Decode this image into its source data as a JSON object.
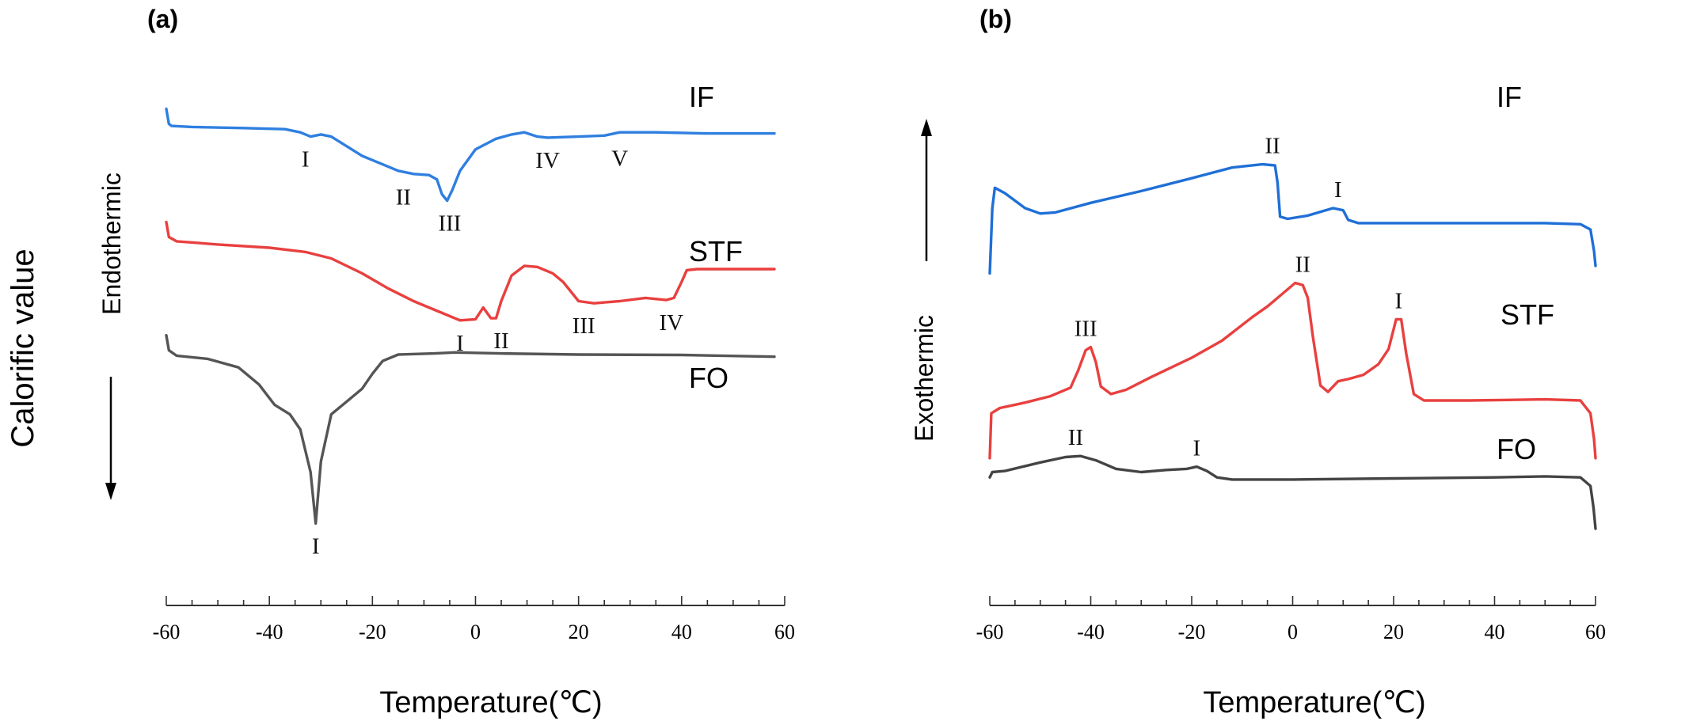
{
  "figure": {
    "y_axis_label": "Calorific value"
  },
  "chart_data": [
    {
      "type": "line",
      "panel_label": "(a)",
      "xlabel": "Temperature(℃)",
      "direction_label": "Endothermic",
      "arrow_direction": "down",
      "xlim": [
        -60,
        60
      ],
      "xticks": [
        -60,
        -40,
        -20,
        0,
        20,
        40,
        60
      ],
      "y_scale": "arbitrary units, larger value = higher on plot",
      "ylim": [
        -10,
        10
      ],
      "grid": false,
      "series": [
        {
          "name": "IF",
          "color": "#2f7fe0",
          "points": [
            [
              -60,
              7.5
            ],
            [
              -59.5,
              6.8
            ],
            [
              -59,
              6.7
            ],
            [
              -55,
              6.65
            ],
            [
              -45,
              6.6
            ],
            [
              -37,
              6.55
            ],
            [
              -34,
              6.4
            ],
            [
              -32,
              6.2
            ],
            [
              -30,
              6.3
            ],
            [
              -28,
              6.2
            ],
            [
              -26,
              5.9
            ],
            [
              -22,
              5.3
            ],
            [
              -18,
              4.9
            ],
            [
              -15,
              4.6
            ],
            [
              -12,
              4.45
            ],
            [
              -9,
              4.4
            ],
            [
              -7.5,
              4.2
            ],
            [
              -6.5,
              3.5
            ],
            [
              -5.5,
              3.2
            ],
            [
              -4.5,
              3.7
            ],
            [
              -3,
              4.6
            ],
            [
              0,
              5.6
            ],
            [
              4,
              6.1
            ],
            [
              7,
              6.3
            ],
            [
              9.5,
              6.4
            ],
            [
              12,
              6.2
            ],
            [
              14,
              6.15
            ],
            [
              20,
              6.2
            ],
            [
              25,
              6.25
            ],
            [
              28,
              6.4
            ],
            [
              35,
              6.4
            ],
            [
              45,
              6.35
            ],
            [
              58,
              6.35
            ]
          ],
          "peak_labels": [
            {
              "label": "I",
              "x": -33
            },
            {
              "label": "II",
              "x": -14
            },
            {
              "label": "III",
              "x": -5
            },
            {
              "label": "IV",
              "x": 14
            },
            {
              "label": "V",
              "x": 28
            }
          ]
        },
        {
          "name": "STF",
          "color": "#e8403f",
          "points": [
            [
              -60,
              2.2
            ],
            [
              -59.5,
              1.5
            ],
            [
              -58,
              1.3
            ],
            [
              -50,
              1.15
            ],
            [
              -40,
              1.0
            ],
            [
              -33,
              0.8
            ],
            [
              -28,
              0.5
            ],
            [
              -22,
              -0.2
            ],
            [
              -17,
              -0.9
            ],
            [
              -12,
              -1.5
            ],
            [
              -7,
              -2.0
            ],
            [
              -3,
              -2.4
            ],
            [
              0,
              -2.35
            ],
            [
              1.5,
              -1.8
            ],
            [
              3,
              -2.3
            ],
            [
              4,
              -2.3
            ],
            [
              5,
              -1.5
            ],
            [
              7,
              -0.3
            ],
            [
              9.5,
              0.15
            ],
            [
              12,
              0.1
            ],
            [
              15,
              -0.2
            ],
            [
              17,
              -0.6
            ],
            [
              20,
              -1.5
            ],
            [
              23,
              -1.6
            ],
            [
              28,
              -1.5
            ],
            [
              33,
              -1.35
            ],
            [
              37,
              -1.45
            ],
            [
              38.5,
              -1.35
            ],
            [
              40,
              -0.6
            ],
            [
              41,
              -0.05
            ],
            [
              43,
              0.0
            ],
            [
              50,
              0.0
            ],
            [
              58,
              0.0
            ]
          ],
          "peak_labels": [
            {
              "label": "I",
              "x": -3
            },
            {
              "label": "II",
              "x": 5
            },
            {
              "label": "III",
              "x": 21
            },
            {
              "label": "IV",
              "x": 38
            }
          ]
        },
        {
          "name": "FO",
          "color": "#555555",
          "points": [
            [
              -60,
              -3.1
            ],
            [
              -59.5,
              -3.8
            ],
            [
              -58,
              -4.05
            ],
            [
              -52,
              -4.2
            ],
            [
              -46,
              -4.6
            ],
            [
              -42,
              -5.4
            ],
            [
              -39,
              -6.35
            ],
            [
              -36,
              -6.8
            ],
            [
              -34,
              -7.5
            ],
            [
              -32,
              -9.5
            ],
            [
              -31,
              -11.9
            ],
            [
              -30,
              -9.0
            ],
            [
              -28,
              -6.8
            ],
            [
              -25,
              -6.2
            ],
            [
              -22,
              -5.6
            ],
            [
              -20,
              -4.9
            ],
            [
              -18,
              -4.3
            ],
            [
              -15,
              -4.0
            ],
            [
              -8,
              -3.95
            ],
            [
              -4,
              -3.9
            ],
            [
              5,
              -3.95
            ],
            [
              20,
              -4.0
            ],
            [
              40,
              -4.02
            ],
            [
              58,
              -4.1
            ]
          ],
          "peak_labels": [
            {
              "label": "I",
              "x": -31
            }
          ]
        }
      ]
    },
    {
      "type": "line",
      "panel_label": "(b)",
      "xlabel": "Temperature(℃)",
      "direction_label": "Exothermic",
      "arrow_direction": "up",
      "xlim": [
        -60,
        60
      ],
      "xticks": [
        -60,
        -40,
        -20,
        0,
        20,
        40,
        60
      ],
      "y_scale": "arbitrary units, larger value = higher on plot",
      "ylim": [
        -10,
        10
      ],
      "grid": false,
      "series": [
        {
          "name": "IF",
          "color": "#1f6fd6",
          "points": [
            [
              -60,
              2.95
            ],
            [
              -59.5,
              6.0
            ],
            [
              -59,
              6.95
            ],
            [
              -57,
              6.7
            ],
            [
              -53,
              6.0
            ],
            [
              -50,
              5.75
            ],
            [
              -47,
              5.8
            ],
            [
              -40,
              6.25
            ],
            [
              -30,
              6.8
            ],
            [
              -20,
              7.4
            ],
            [
              -12,
              7.9
            ],
            [
              -6,
              8.05
            ],
            [
              -3.5,
              8.0
            ],
            [
              -3,
              7.2
            ],
            [
              -2.5,
              5.6
            ],
            [
              -1,
              5.5
            ],
            [
              3,
              5.65
            ],
            [
              8,
              6.0
            ],
            [
              10,
              5.9
            ],
            [
              11,
              5.45
            ],
            [
              13,
              5.3
            ],
            [
              30,
              5.3
            ],
            [
              50,
              5.3
            ],
            [
              57,
              5.25
            ],
            [
              59,
              5.0
            ],
            [
              59.7,
              4.0
            ],
            [
              60,
              3.3
            ]
          ],
          "peak_labels": [
            {
              "label": "II",
              "x": -4
            },
            {
              "label": "I",
              "x": 9
            }
          ]
        },
        {
          "name": "STF",
          "color": "#e8403f",
          "points": [
            [
              -60,
              -5.7
            ],
            [
              -59.7,
              -3.6
            ],
            [
              -58,
              -3.35
            ],
            [
              -53,
              -3.1
            ],
            [
              -48,
              -2.8
            ],
            [
              -44,
              -2.4
            ],
            [
              -42.5,
              -1.6
            ],
            [
              -41,
              -0.65
            ],
            [
              -40,
              -0.5
            ],
            [
              -39,
              -1.2
            ],
            [
              -38,
              -2.35
            ],
            [
              -36,
              -2.7
            ],
            [
              -33,
              -2.5
            ],
            [
              -28,
              -1.9
            ],
            [
              -20,
              -1.0
            ],
            [
              -14,
              -0.2
            ],
            [
              -8,
              0.9
            ],
            [
              -5,
              1.4
            ],
            [
              -2,
              2.0
            ],
            [
              0.5,
              2.5
            ],
            [
              2,
              2.4
            ],
            [
              3,
              1.8
            ],
            [
              4,
              0.0
            ],
            [
              5.5,
              -2.3
            ],
            [
              7,
              -2.6
            ],
            [
              9,
              -2.1
            ],
            [
              11,
              -2.0
            ],
            [
              14,
              -1.8
            ],
            [
              17,
              -1.3
            ],
            [
              19,
              -0.6
            ],
            [
              20.5,
              0.8
            ],
            [
              21.5,
              0.8
            ],
            [
              22.5,
              -0.8
            ],
            [
              24,
              -2.7
            ],
            [
              26,
              -3.0
            ],
            [
              35,
              -3.0
            ],
            [
              50,
              -2.95
            ],
            [
              57,
              -3.0
            ],
            [
              59,
              -3.6
            ],
            [
              59.7,
              -4.8
            ],
            [
              60,
              -5.7
            ]
          ],
          "peak_labels": [
            {
              "label": "III",
              "x": -41
            },
            {
              "label": "II",
              "x": 2
            },
            {
              "label": "I",
              "x": 21
            }
          ]
        },
        {
          "name": "FO",
          "color": "#444444",
          "points": [
            [
              -60,
              -6.6
            ],
            [
              -59.5,
              -6.35
            ],
            [
              -57,
              -6.3
            ],
            [
              -50,
              -5.9
            ],
            [
              -45,
              -5.65
            ],
            [
              -42,
              -5.6
            ],
            [
              -39,
              -5.8
            ],
            [
              -35,
              -6.2
            ],
            [
              -30,
              -6.35
            ],
            [
              -25,
              -6.25
            ],
            [
              -21,
              -6.2
            ],
            [
              -19,
              -6.1
            ],
            [
              -17,
              -6.3
            ],
            [
              -15,
              -6.6
            ],
            [
              -12,
              -6.7
            ],
            [
              0,
              -6.7
            ],
            [
              20,
              -6.65
            ],
            [
              40,
              -6.6
            ],
            [
              50,
              -6.55
            ],
            [
              57,
              -6.6
            ],
            [
              59,
              -7.0
            ],
            [
              59.6,
              -8.0
            ],
            [
              60,
              -9.0
            ]
          ],
          "peak_labels": [
            {
              "label": "II",
              "x": -43
            },
            {
              "label": "I",
              "x": -19
            }
          ]
        }
      ]
    }
  ]
}
